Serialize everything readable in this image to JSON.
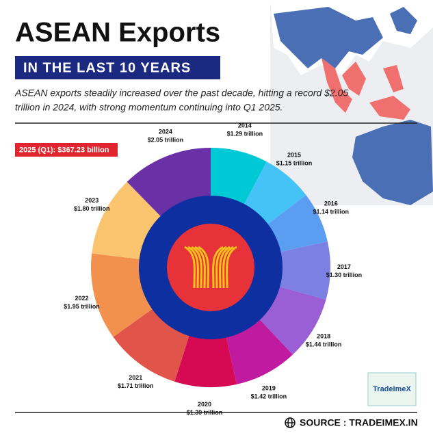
{
  "title": "ASEAN Exports",
  "subtitle": "IN THE LAST 10 YEARS",
  "description": [
    "ASEAN exports steadily increased over the past decade, hitting a record $2.05",
    "trillion in 2024, with strong momentum continuing into Q1 2025."
  ],
  "source": "SOURCE : TRADEIMEX.IN",
  "logo": "TradeImeX",
  "chart_data": {
    "type": "donut",
    "annotation": "2025 (Q1): $367.23 billion",
    "categories": [
      "2014",
      "2015",
      "2016",
      "2017",
      "2018",
      "2019",
      "2020",
      "2021",
      "2022",
      "2023",
      "2024"
    ],
    "values": [
      1.29,
      1.15,
      1.14,
      1.3,
      1.44,
      1.42,
      1.39,
      1.71,
      1.95,
      1.8,
      2.05
    ],
    "value_labels": [
      "$1.29 trillion",
      "$1.15 trillion",
      "$1.14 trillion",
      "$1.30 trillion",
      "$1.44 trillion",
      "$1.42 trillion",
      "$1.39 trillion",
      "$1.71 trillion",
      "$1.95 trillion",
      "$1.80 trillion",
      "$2.05 trillion"
    ],
    "colors": [
      "#00c9d6",
      "#45c3f6",
      "#5a9df1",
      "#7b80e2",
      "#9a5ed5",
      "#bf1aa0",
      "#d60a52",
      "#e0544a",
      "#f2904d",
      "#fbc46f",
      "#6a30a6"
    ]
  }
}
